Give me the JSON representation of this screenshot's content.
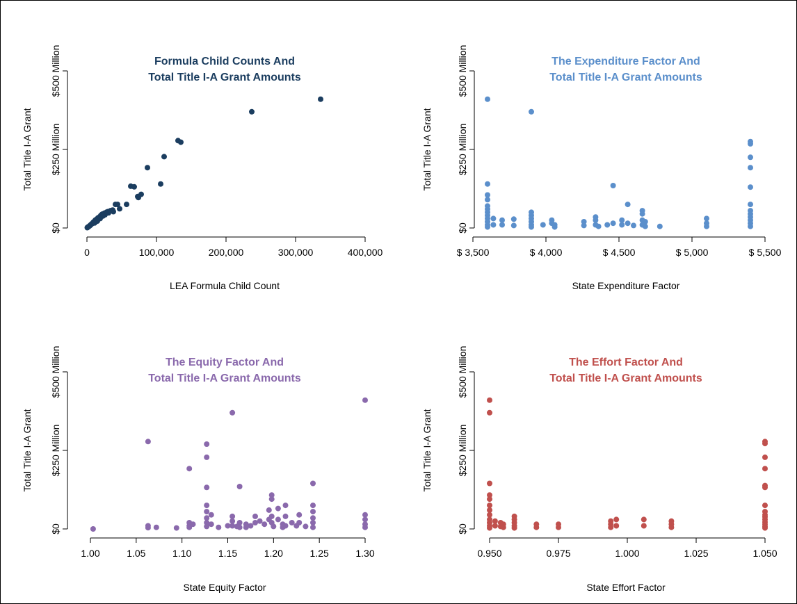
{
  "chart_data": [
    {
      "type": "scatter",
      "title": [
        "Formula Child Counts And",
        "Total Title I-A Grant Amounts"
      ],
      "color": "#1b3d5f",
      "xlabel": "LEA Formula Child Count",
      "ylabel": "Total Title I-A Grant",
      "xlim": [
        0,
        400000
      ],
      "ylim": [
        0,
        500
      ],
      "xticks": [
        0,
        100000,
        200000,
        300000,
        400000
      ],
      "xtick_labels": [
        "0",
        "100,000",
        "200,000",
        "300,000",
        "400,000"
      ],
      "yticks": [
        0,
        250,
        500
      ],
      "ytick_labels": [
        "$0",
        "$250 Million",
        "$500 Million"
      ],
      "y_units": "millions of dollars",
      "points": [
        [
          336000,
          410
        ],
        [
          237000,
          370
        ],
        [
          131000,
          278
        ],
        [
          135000,
          273
        ],
        [
          111000,
          227
        ],
        [
          87000,
          192
        ],
        [
          106000,
          140
        ],
        [
          63000,
          133
        ],
        [
          68000,
          131
        ],
        [
          78000,
          107
        ],
        [
          73000,
          100
        ],
        [
          74000,
          97
        ],
        [
          57000,
          75
        ],
        [
          44000,
          75
        ],
        [
          41000,
          75
        ],
        [
          47000,
          61
        ],
        [
          37000,
          57
        ],
        [
          34000,
          55
        ],
        [
          30000,
          52
        ],
        [
          28000,
          50
        ],
        [
          25000,
          47
        ],
        [
          22000,
          44
        ],
        [
          20000,
          40
        ],
        [
          18000,
          35
        ],
        [
          16000,
          32
        ],
        [
          14000,
          28
        ],
        [
          12000,
          25
        ],
        [
          10000,
          20
        ],
        [
          9000,
          18
        ],
        [
          8000,
          15
        ],
        [
          7000,
          13
        ],
        [
          6000,
          11
        ],
        [
          5000,
          9
        ],
        [
          4000,
          7
        ],
        [
          3000,
          5
        ],
        [
          2000,
          4
        ],
        [
          1000,
          2
        ],
        [
          500,
          1
        ],
        [
          26000,
          42
        ],
        [
          31000,
          48
        ],
        [
          38000,
          52
        ],
        [
          23000,
          38
        ],
        [
          19000,
          30
        ],
        [
          15000,
          22
        ],
        [
          11000,
          16
        ]
      ]
    },
    {
      "type": "scatter",
      "title": [
        "The Expenditure Factor And",
        "Total Title I-A Grant Amounts"
      ],
      "color": "#5b8fcb",
      "xlabel": "State Expenditure Factor",
      "ylabel": "Total Title I-A Grant",
      "xlim": [
        3500,
        5500
      ],
      "ylim": [
        0,
        500
      ],
      "xticks": [
        3500,
        4000,
        4500,
        5000,
        5500
      ],
      "xtick_labels": [
        "$ 3,500",
        "$ 4,000",
        "$ 4,500",
        "$ 5,000",
        "$ 5,500"
      ],
      "yticks": [
        0,
        250,
        500
      ],
      "ytick_labels": [
        "$0",
        "$250 Million",
        "$500 Million"
      ],
      "y_units": "millions of dollars",
      "points": [
        [
          3600,
          410
        ],
        [
          3600,
          140
        ],
        [
          3600,
          105
        ],
        [
          3600,
          90
        ],
        [
          3600,
          70
        ],
        [
          3600,
          60
        ],
        [
          3600,
          50
        ],
        [
          3600,
          40
        ],
        [
          3600,
          30
        ],
        [
          3600,
          20
        ],
        [
          3600,
          10
        ],
        [
          3600,
          3
        ],
        [
          3640,
          30
        ],
        [
          3640,
          10
        ],
        [
          3700,
          25
        ],
        [
          3700,
          10
        ],
        [
          3780,
          28
        ],
        [
          3780,
          8
        ],
        [
          3900,
          370
        ],
        [
          3900,
          50
        ],
        [
          3900,
          40
        ],
        [
          3900,
          30
        ],
        [
          3900,
          20
        ],
        [
          3900,
          10
        ],
        [
          3900,
          3
        ],
        [
          3980,
          10
        ],
        [
          4040,
          25
        ],
        [
          4040,
          15
        ],
        [
          4060,
          10
        ],
        [
          4060,
          3
        ],
        [
          4260,
          20
        ],
        [
          4260,
          8
        ],
        [
          4340,
          35
        ],
        [
          4340,
          25
        ],
        [
          4340,
          10
        ],
        [
          4360,
          5
        ],
        [
          4420,
          10
        ],
        [
          4460,
          135
        ],
        [
          4460,
          15
        ],
        [
          4520,
          25
        ],
        [
          4520,
          10
        ],
        [
          4560,
          75
        ],
        [
          4560,
          15
        ],
        [
          4600,
          8
        ],
        [
          4660,
          55
        ],
        [
          4660,
          45
        ],
        [
          4660,
          25
        ],
        [
          4660,
          10
        ],
        [
          4680,
          20
        ],
        [
          4680,
          5
        ],
        [
          4780,
          5
        ],
        [
          5100,
          30
        ],
        [
          5100,
          15
        ],
        [
          5100,
          5
        ],
        [
          5400,
          275
        ],
        [
          5400,
          268
        ],
        [
          5400,
          225
        ],
        [
          5400,
          192
        ],
        [
          5400,
          130
        ],
        [
          5400,
          75
        ],
        [
          5400,
          55
        ],
        [
          5400,
          45
        ],
        [
          5400,
          35
        ],
        [
          5400,
          25
        ],
        [
          5400,
          15
        ],
        [
          5400,
          5
        ]
      ]
    },
    {
      "type": "scatter",
      "title": [
        "The Equity Factor And",
        "Total Title I-A Grant Amounts"
      ],
      "color": "#8a69ac",
      "xlabel": "State Equity Factor",
      "ylabel": "Total Title I-A Grant",
      "xlim": [
        1.0,
        1.3
      ],
      "ylim": [
        0,
        500
      ],
      "xticks": [
        1.0,
        1.05,
        1.1,
        1.15,
        1.2,
        1.25,
        1.3
      ],
      "xtick_labels": [
        "1.00",
        "1.05",
        "1.10",
        "1.15",
        "1.20",
        "1.25",
        "1.30"
      ],
      "yticks": [
        0,
        250,
        500
      ],
      "ytick_labels": [
        "$0",
        "$250 Million",
        "$500 Million"
      ],
      "y_units": "millions of dollars",
      "points": [
        [
          1.003,
          0
        ],
        [
          1.063,
          278
        ],
        [
          1.063,
          10
        ],
        [
          1.063,
          4
        ],
        [
          1.072,
          5
        ],
        [
          1.094,
          3
        ],
        [
          1.108,
          192
        ],
        [
          1.108,
          20
        ],
        [
          1.108,
          10
        ],
        [
          1.108,
          5
        ],
        [
          1.112,
          15
        ],
        [
          1.127,
          270
        ],
        [
          1.127,
          228
        ],
        [
          1.127,
          132
        ],
        [
          1.127,
          75
        ],
        [
          1.127,
          55
        ],
        [
          1.127,
          35
        ],
        [
          1.127,
          20
        ],
        [
          1.127,
          8
        ],
        [
          1.132,
          45
        ],
        [
          1.132,
          15
        ],
        [
          1.155,
          370
        ],
        [
          1.155,
          40
        ],
        [
          1.155,
          25
        ],
        [
          1.155,
          10
        ],
        [
          1.163,
          135
        ],
        [
          1.163,
          20
        ],
        [
          1.163,
          5
        ],
        [
          1.17,
          15
        ],
        [
          1.175,
          10
        ],
        [
          1.18,
          40
        ],
        [
          1.18,
          20
        ],
        [
          1.185,
          25
        ],
        [
          1.19,
          15
        ],
        [
          1.195,
          60
        ],
        [
          1.195,
          30
        ],
        [
          1.198,
          108
        ],
        [
          1.198,
          95
        ],
        [
          1.198,
          40
        ],
        [
          1.198,
          20
        ],
        [
          1.205,
          65
        ],
        [
          1.205,
          30
        ],
        [
          1.21,
          15
        ],
        [
          1.213,
          75
        ],
        [
          1.213,
          40
        ],
        [
          1.213,
          10
        ],
        [
          1.22,
          20
        ],
        [
          1.225,
          10
        ],
        [
          1.228,
          45
        ],
        [
          1.228,
          20
        ],
        [
          1.235,
          8
        ],
        [
          1.243,
          145
        ],
        [
          1.243,
          75
        ],
        [
          1.243,
          55
        ],
        [
          1.243,
          35
        ],
        [
          1.243,
          20
        ],
        [
          1.243,
          5
        ],
        [
          1.3,
          410
        ],
        [
          1.3,
          45
        ],
        [
          1.3,
          30
        ],
        [
          1.3,
          15
        ],
        [
          1.3,
          5
        ],
        [
          1.15,
          10
        ],
        [
          1.16,
          8
        ],
        [
          1.17,
          5
        ],
        [
          1.2,
          8
        ],
        [
          1.21,
          5
        ],
        [
          1.14,
          5
        ]
      ]
    },
    {
      "type": "scatter",
      "title": [
        "The Effort Factor And",
        "Total Title I-A Grant Amounts"
      ],
      "color": "#c0504d",
      "xlabel": "State Effort Factor",
      "ylabel": "Total Title I-A Grant",
      "xlim": [
        0.95,
        1.05
      ],
      "ylim": [
        0,
        500
      ],
      "xticks": [
        0.95,
        0.975,
        1.0,
        1.025,
        1.05
      ],
      "xtick_labels": [
        "0.950",
        "0.975",
        "1.000",
        "1.025",
        "1.050"
      ],
      "yticks": [
        0,
        250,
        500
      ],
      "ytick_labels": [
        "$0",
        "$250 Million",
        "$500 Million"
      ],
      "y_units": "millions of dollars",
      "points": [
        [
          0.95,
          410
        ],
        [
          0.95,
          370
        ],
        [
          0.95,
          145
        ],
        [
          0.95,
          108
        ],
        [
          0.95,
          95
        ],
        [
          0.95,
          75
        ],
        [
          0.95,
          60
        ],
        [
          0.95,
          45
        ],
        [
          0.95,
          30
        ],
        [
          0.95,
          20
        ],
        [
          0.95,
          10
        ],
        [
          0.95,
          3
        ],
        [
          0.952,
          25
        ],
        [
          0.952,
          10
        ],
        [
          0.954,
          20
        ],
        [
          0.954,
          8
        ],
        [
          0.955,
          15
        ],
        [
          0.955,
          5
        ],
        [
          0.959,
          40
        ],
        [
          0.959,
          30
        ],
        [
          0.959,
          20
        ],
        [
          0.959,
          10
        ],
        [
          0.959,
          3
        ],
        [
          0.967,
          15
        ],
        [
          0.967,
          5
        ],
        [
          0.975,
          15
        ],
        [
          0.975,
          5
        ],
        [
          0.994,
          25
        ],
        [
          0.994,
          15
        ],
        [
          0.994,
          5
        ],
        [
          0.996,
          30
        ],
        [
          0.996,
          10
        ],
        [
          1.006,
          30
        ],
        [
          1.006,
          10
        ],
        [
          1.016,
          25
        ],
        [
          1.016,
          15
        ],
        [
          1.016,
          5
        ],
        [
          1.05,
          278
        ],
        [
          1.05,
          272
        ],
        [
          1.05,
          228
        ],
        [
          1.05,
          192
        ],
        [
          1.05,
          138
        ],
        [
          1.05,
          132
        ],
        [
          1.05,
          75
        ],
        [
          1.05,
          55
        ],
        [
          1.05,
          45
        ],
        [
          1.05,
          38
        ],
        [
          1.05,
          30
        ],
        [
          1.05,
          22
        ],
        [
          1.05,
          15
        ],
        [
          1.05,
          8
        ],
        [
          1.05,
          3
        ]
      ]
    }
  ]
}
